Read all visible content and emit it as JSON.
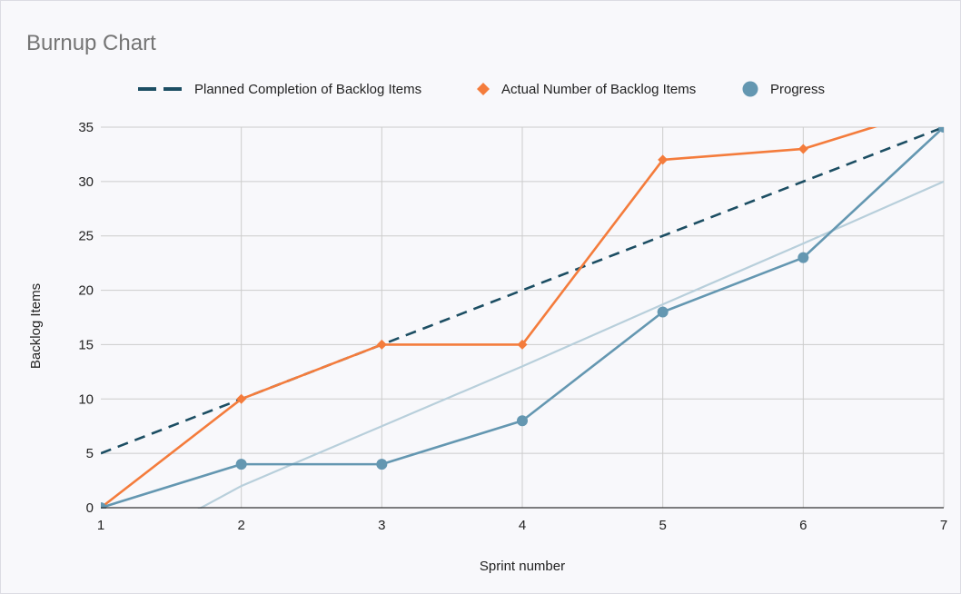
{
  "chart_data": {
    "type": "line",
    "title": "Burnup Chart",
    "xlabel": "Sprint number",
    "ylabel": "Backlog Items",
    "x": [
      1,
      2,
      3,
      4,
      5,
      6,
      7
    ],
    "xlim": [
      1,
      7
    ],
    "ylim": [
      0,
      35
    ],
    "yticks": [
      0,
      5,
      10,
      15,
      20,
      25,
      30,
      35
    ],
    "grid": true,
    "legend_position": "top",
    "series": [
      {
        "name": "Planned Completion of Backlog Items",
        "style": "dashed",
        "color": "#1c4e63",
        "values": [
          5,
          10,
          15,
          20,
          25,
          30,
          35
        ]
      },
      {
        "name": "Actual Number of Backlog Items",
        "style": "line-diamond",
        "color": "#f47c3c",
        "values": [
          0,
          10,
          15,
          15,
          32,
          33,
          37
        ]
      },
      {
        "name": "Progress",
        "style": "line-circle",
        "color": "#6497b1",
        "values": [
          0,
          4,
          4,
          8,
          18,
          23,
          35
        ]
      }
    ],
    "trendline": {
      "series": "Progress",
      "color": "#b8cfdb",
      "values": [
        -5,
        2,
        7.5,
        13,
        18.7,
        24.3,
        30
      ]
    }
  }
}
